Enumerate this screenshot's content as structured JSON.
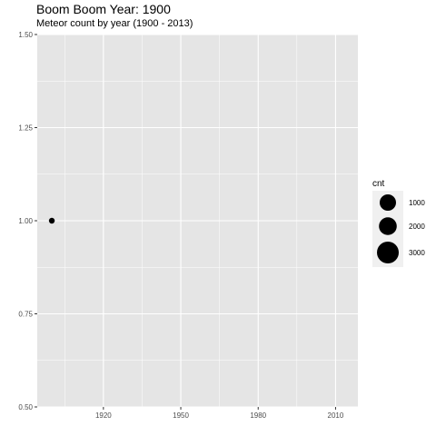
{
  "chart_data": {
    "type": "scatter",
    "title": "Boom Boom Year: 1900",
    "subtitle": "Meteor count by year (1900 - 2013)",
    "xlabel": "",
    "ylabel": "",
    "xlim": [
      1900,
      2013
    ],
    "ylim": [
      0.5,
      1.5
    ],
    "x_ticks": [
      1920,
      1950,
      1980,
      2010
    ],
    "y_ticks": [
      0.5,
      0.75,
      1.0,
      1.25,
      1.5
    ],
    "x_tick_labels": [
      "1920",
      "1950",
      "1980",
      "2010"
    ],
    "y_tick_labels": [
      "0.50",
      "0.75",
      "1.00",
      "1.25",
      "1.50"
    ],
    "grid": true,
    "points": [
      {
        "x": 1900,
        "y": 1.0,
        "cnt": 100
      }
    ],
    "legend": {
      "title": "cnt",
      "placement": "right",
      "entries": [
        {
          "value": 1000,
          "label": "1000"
        },
        {
          "value": 2000,
          "label": "2000"
        },
        {
          "value": 3000,
          "label": "3000"
        }
      ]
    },
    "colors": {
      "panel": "#e5e5e5",
      "grid": "#ffffff",
      "point": "#000000",
      "legend_key_bg": "#f0f0f0"
    }
  }
}
